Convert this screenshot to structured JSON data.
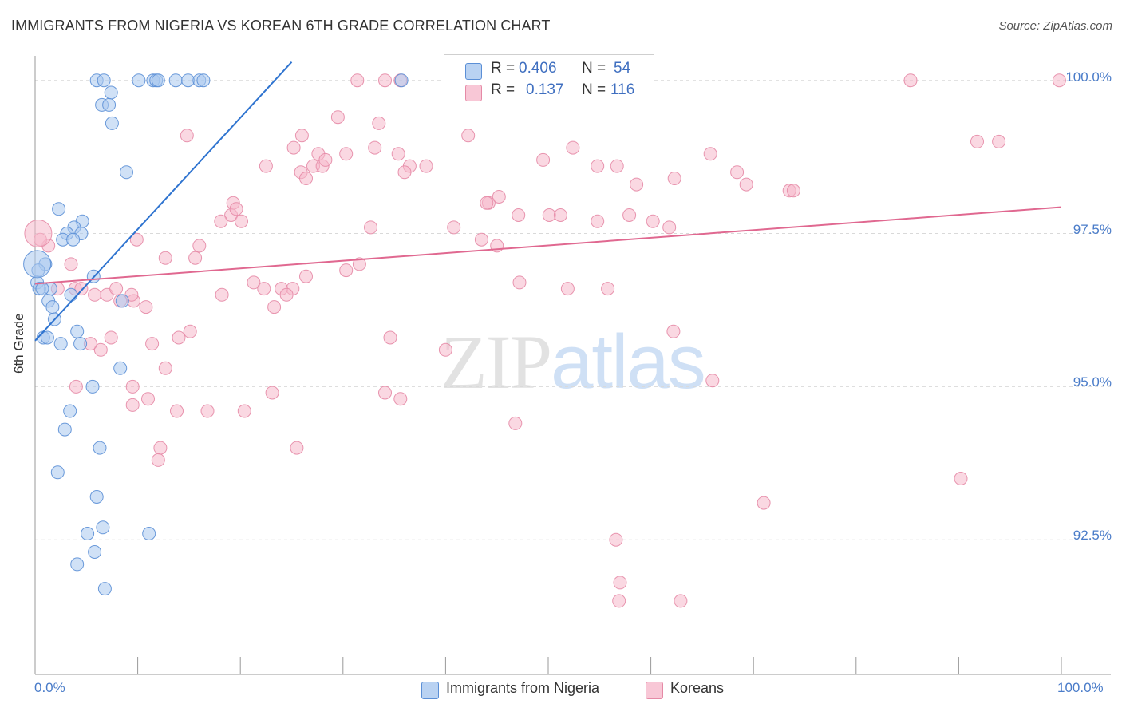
{
  "title": "IMMIGRANTS FROM NIGERIA VS KOREAN 6TH GRADE CORRELATION CHART",
  "source": "Source: ZipAtlas.com",
  "watermark": {
    "zip": "ZIP",
    "atlas": "atlas"
  },
  "colors": {
    "blue_fill": "#a9c8ef",
    "blue_stroke": "#5b8fd6",
    "blue_line": "#2f74d0",
    "pink_fill": "#f5b8cb",
    "pink_stroke": "#e58aa6",
    "pink_line": "#e06890",
    "tick_label": "#4a7cc9",
    "grid": "#d9d9d9"
  },
  "legend": {
    "rows": [
      {
        "r_label": "R =",
        "r_value": "0.406",
        "n_label": "N =",
        "n_value": "54"
      },
      {
        "r_label": "R =",
        "r_value": "0.137",
        "n_label": "N =",
        "n_value": "116"
      }
    ]
  },
  "bottom_legend": [
    "Immigrants from Nigeria",
    "Koreans"
  ],
  "chart_data": {
    "type": "scatter",
    "xlabel": "",
    "ylabel": "6th Grade",
    "xlim": [
      0,
      100
    ],
    "ylim": [
      90.3,
      100.4
    ],
    "x_tick_labels": [
      "0.0%",
      "100.0%"
    ],
    "y_ticks": [
      92.5,
      95.0,
      97.5,
      100.0
    ],
    "y_tick_labels": [
      "92.5%",
      "95.0%",
      "97.5%",
      "100.0%"
    ],
    "grid": "horizontal dashed",
    "legend_position": "top-center",
    "series": [
      {
        "name": "Immigrants from Nigeria",
        "color": "blue",
        "R": 0.406,
        "N": 54,
        "trend": {
          "x": [
            0.0,
            25.0
          ],
          "y": [
            95.75,
            100.3
          ]
        },
        "points": [
          [
            6.0,
            100.0
          ],
          [
            6.7,
            100.0
          ],
          [
            10.1,
            100.0
          ],
          [
            11.5,
            100.0
          ],
          [
            11.8,
            100.0
          ],
          [
            12.0,
            100.0
          ],
          [
            13.7,
            100.0
          ],
          [
            14.9,
            100.0
          ],
          [
            16.0,
            100.0
          ],
          [
            16.4,
            100.0
          ],
          [
            35.7,
            100.0
          ],
          [
            7.4,
            99.8
          ],
          [
            6.5,
            99.6
          ],
          [
            7.2,
            99.6
          ],
          [
            7.5,
            99.3
          ],
          [
            8.9,
            98.5
          ],
          [
            2.3,
            97.9
          ],
          [
            4.6,
            97.7
          ],
          [
            3.8,
            97.6
          ],
          [
            3.1,
            97.5
          ],
          [
            4.5,
            97.5
          ],
          [
            2.7,
            97.4
          ],
          [
            3.7,
            97.4
          ],
          [
            1.0,
            97.0
          ],
          [
            0.3,
            96.9
          ],
          [
            0.2,
            96.7
          ],
          [
            1.5,
            96.6
          ],
          [
            0.4,
            96.6
          ],
          [
            0.7,
            96.6
          ],
          [
            5.7,
            96.8
          ],
          [
            3.5,
            96.5
          ],
          [
            1.3,
            96.4
          ],
          [
            8.5,
            96.4
          ],
          [
            1.7,
            96.3
          ],
          [
            1.9,
            96.1
          ],
          [
            4.1,
            95.9
          ],
          [
            0.8,
            95.8
          ],
          [
            1.2,
            95.8
          ],
          [
            4.4,
            95.7
          ],
          [
            2.5,
            95.7
          ],
          [
            8.3,
            95.3
          ],
          [
            5.6,
            95.0
          ],
          [
            3.4,
            94.6
          ],
          [
            2.9,
            94.3
          ],
          [
            6.3,
            94.0
          ],
          [
            2.2,
            93.6
          ],
          [
            6.0,
            93.2
          ],
          [
            6.6,
            92.7
          ],
          [
            5.1,
            92.6
          ],
          [
            11.1,
            92.6
          ],
          [
            5.8,
            92.3
          ],
          [
            4.1,
            92.1
          ],
          [
            6.8,
            91.7
          ],
          [
            0.2,
            97.0
          ]
        ]
      },
      {
        "name": "Koreans",
        "color": "pink",
        "R": 0.137,
        "N": 116,
        "trend": {
          "x": [
            0.0,
            100.0
          ],
          "y": [
            96.68,
            97.93
          ]
        },
        "points": [
          [
            31.4,
            100.0
          ],
          [
            34.1,
            100.0
          ],
          [
            35.6,
            100.0
          ],
          [
            40.5,
            100.0
          ],
          [
            40.8,
            100.0
          ],
          [
            85.3,
            100.0
          ],
          [
            99.8,
            100.0
          ],
          [
            14.8,
            99.1
          ],
          [
            25.2,
            98.9
          ],
          [
            26.0,
            99.1
          ],
          [
            29.5,
            99.4
          ],
          [
            33.5,
            99.3
          ],
          [
            35.4,
            98.8
          ],
          [
            33.1,
            98.9
          ],
          [
            36.5,
            98.6
          ],
          [
            42.2,
            99.1
          ],
          [
            49.5,
            98.7
          ],
          [
            52.4,
            98.9
          ],
          [
            56.7,
            98.6
          ],
          [
            22.5,
            98.6
          ],
          [
            25.9,
            98.5
          ],
          [
            26.4,
            98.4
          ],
          [
            27.1,
            98.6
          ],
          [
            27.6,
            98.8
          ],
          [
            28.0,
            98.6
          ],
          [
            28.3,
            98.7
          ],
          [
            30.3,
            98.8
          ],
          [
            36.0,
            98.5
          ],
          [
            38.1,
            98.6
          ],
          [
            54.8,
            98.6
          ],
          [
            58.6,
            98.3
          ],
          [
            62.3,
            98.4
          ],
          [
            65.8,
            98.8
          ],
          [
            68.4,
            98.5
          ],
          [
            69.3,
            98.3
          ],
          [
            73.5,
            98.2
          ],
          [
            73.9,
            98.2
          ],
          [
            91.8,
            99.0
          ],
          [
            93.9,
            99.0
          ],
          [
            44.2,
            98.0
          ],
          [
            44.0,
            98.0
          ],
          [
            45.2,
            98.1
          ],
          [
            19.3,
            98.0
          ],
          [
            19.1,
            97.8
          ],
          [
            19.6,
            97.9
          ],
          [
            20.1,
            97.7
          ],
          [
            18.1,
            97.7
          ],
          [
            32.7,
            97.6
          ],
          [
            40.8,
            97.6
          ],
          [
            43.5,
            97.4
          ],
          [
            47.1,
            97.8
          ],
          [
            50.1,
            97.8
          ],
          [
            51.2,
            97.8
          ],
          [
            54.8,
            97.7
          ],
          [
            57.9,
            97.8
          ],
          [
            60.2,
            97.7
          ],
          [
            61.8,
            97.6
          ],
          [
            45.0,
            97.3
          ],
          [
            9.9,
            97.4
          ],
          [
            16.0,
            97.3
          ],
          [
            12.7,
            97.1
          ],
          [
            15.6,
            97.1
          ],
          [
            1.3,
            97.3
          ],
          [
            3.5,
            97.0
          ],
          [
            0.5,
            97.4
          ],
          [
            3.9,
            96.6
          ],
          [
            4.5,
            96.6
          ],
          [
            2.2,
            96.6
          ],
          [
            21.3,
            96.7
          ],
          [
            22.3,
            96.6
          ],
          [
            24.0,
            96.6
          ],
          [
            25.1,
            96.6
          ],
          [
            24.5,
            96.5
          ],
          [
            26.4,
            96.8
          ],
          [
            30.3,
            96.9
          ],
          [
            31.6,
            97.0
          ],
          [
            47.2,
            96.7
          ],
          [
            51.9,
            96.6
          ],
          [
            55.8,
            96.6
          ],
          [
            5.8,
            96.5
          ],
          [
            7.0,
            96.5
          ],
          [
            8.3,
            96.4
          ],
          [
            9.6,
            96.4
          ],
          [
            18.2,
            96.5
          ],
          [
            23.3,
            96.3
          ],
          [
            7.9,
            96.6
          ],
          [
            15.1,
            95.9
          ],
          [
            14.0,
            95.8
          ],
          [
            10.8,
            96.3
          ],
          [
            9.4,
            96.5
          ],
          [
            7.4,
            95.8
          ],
          [
            6.4,
            95.6
          ],
          [
            5.4,
            95.7
          ],
          [
            11.4,
            95.7
          ],
          [
            12.7,
            95.3
          ],
          [
            34.6,
            95.8
          ],
          [
            40.0,
            95.6
          ],
          [
            62.2,
            95.9
          ],
          [
            66.0,
            95.1
          ],
          [
            9.5,
            95.0
          ],
          [
            4.0,
            95.0
          ],
          [
            9.5,
            94.7
          ],
          [
            11.0,
            94.8
          ],
          [
            13.8,
            94.6
          ],
          [
            16.8,
            94.6
          ],
          [
            20.4,
            94.6
          ],
          [
            23.1,
            94.9
          ],
          [
            34.1,
            94.9
          ],
          [
            35.6,
            94.8
          ],
          [
            46.8,
            94.4
          ],
          [
            25.5,
            94.0
          ],
          [
            12.2,
            94.0
          ],
          [
            12.0,
            93.8
          ],
          [
            90.2,
            93.5
          ],
          [
            71.0,
            93.1
          ],
          [
            56.6,
            92.5
          ],
          [
            57.0,
            91.8
          ],
          [
            56.9,
            91.5
          ],
          [
            62.9,
            91.5
          ],
          [
            0.3,
            97.5
          ]
        ]
      }
    ]
  }
}
